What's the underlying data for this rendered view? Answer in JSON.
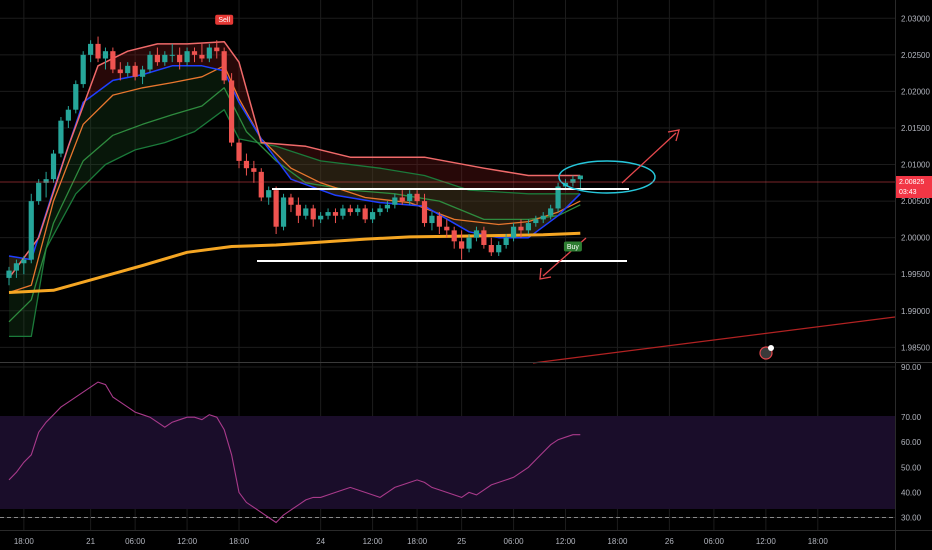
{
  "chart_data": [
    {
      "type": "candlestick",
      "panel": "price",
      "ylim": [
        1.983,
        2.0325
      ],
      "y_ticks": [
        "2.03000",
        "2.02500",
        "2.02000",
        "2.01500",
        "2.01000",
        "2.00500",
        "2.00000",
        "1.99500",
        "1.99000",
        "1.98500"
      ],
      "y_tick_values": [
        2.03,
        2.025,
        2.02,
        2.015,
        2.01,
        2.005,
        2.0,
        1.995,
        1.99,
        1.985
      ],
      "x_labels": [
        "18:00",
        "21",
        "06:00",
        "12:00",
        "18:00",
        "24",
        "12:00",
        "18:00",
        "25",
        "06:00",
        "12:00",
        "18:00",
        "26",
        "06:00",
        "12:00",
        "18:00"
      ],
      "x_label_bars": [
        2,
        11,
        17,
        24,
        31,
        42,
        49,
        55,
        61,
        68,
        75,
        82,
        89,
        95,
        102,
        109
      ],
      "current_price": "2.00825",
      "countdown": "03:43",
      "signals": [
        {
          "label": "Sell",
          "bar": 29,
          "price": 2.0298
        },
        {
          "label": "Buy",
          "bar": 76,
          "price": 1.9988
        }
      ],
      "candles": [
        [
          1.9945,
          1.996,
          1.9935,
          1.9955
        ],
        [
          1.9955,
          1.997,
          1.9945,
          1.9965
        ],
        [
          1.9965,
          1.9975,
          1.995,
          1.997
        ],
        [
          1.997,
          2.006,
          1.9965,
          2.005
        ],
        [
          2.005,
          2.008,
          2.0045,
          2.0075
        ],
        [
          2.0075,
          2.009,
          2.0055,
          2.008
        ],
        [
          2.008,
          2.012,
          2.0075,
          2.0115
        ],
        [
          2.0115,
          2.0165,
          2.011,
          2.016
        ],
        [
          2.016,
          2.018,
          2.015,
          2.0175
        ],
        [
          2.0175,
          2.0215,
          2.017,
          2.021
        ],
        [
          2.021,
          2.0255,
          2.0205,
          2.025
        ],
        [
          2.025,
          2.027,
          2.024,
          2.0265
        ],
        [
          2.0265,
          2.0275,
          2.024,
          2.0245
        ],
        [
          2.0245,
          2.026,
          2.023,
          2.0255
        ],
        [
          2.0255,
          2.026,
          2.0225,
          2.023
        ],
        [
          2.023,
          2.024,
          2.0215,
          2.0225
        ],
        [
          2.0225,
          2.024,
          2.022,
          2.0235
        ],
        [
          2.0235,
          2.024,
          2.0215,
          2.022
        ],
        [
          2.022,
          2.0235,
          2.021,
          2.023
        ],
        [
          2.023,
          2.0255,
          2.0225,
          2.025
        ],
        [
          2.025,
          2.026,
          2.0235,
          2.024
        ],
        [
          2.024,
          2.0255,
          2.0235,
          2.025
        ],
        [
          2.025,
          2.0265,
          2.024,
          2.025
        ],
        [
          2.025,
          2.026,
          2.023,
          2.024
        ],
        [
          2.024,
          2.026,
          2.0235,
          2.0255
        ],
        [
          2.0255,
          2.026,
          2.024,
          2.025
        ],
        [
          2.025,
          2.0265,
          2.024,
          2.0245
        ],
        [
          2.0245,
          2.0265,
          2.024,
          2.026
        ],
        [
          2.026,
          2.027,
          2.0245,
          2.0255
        ],
        [
          2.0255,
          2.026,
          2.021,
          2.0215
        ],
        [
          2.0215,
          2.0225,
          2.0125,
          2.013
        ],
        [
          2.013,
          2.0135,
          2.0095,
          2.0105
        ],
        [
          2.0105,
          2.0115,
          2.0085,
          2.0095
        ],
        [
          2.0095,
          2.0105,
          2.0075,
          2.009
        ],
        [
          2.009,
          2.0095,
          2.005,
          2.0055
        ],
        [
          2.0055,
          2.007,
          2.0045,
          2.0065
        ],
        [
          2.0065,
          2.007,
          2.0005,
          2.0015
        ],
        [
          2.0015,
          2.006,
          2.001,
          2.0055
        ],
        [
          2.0055,
          2.006,
          2.0035,
          2.0045
        ],
        [
          2.0045,
          2.0055,
          2.002,
          2.003
        ],
        [
          2.003,
          2.0045,
          2.0025,
          2.004
        ],
        [
          2.004,
          2.0045,
          2.0015,
          2.0025
        ],
        [
          2.0025,
          2.0035,
          2.002,
          2.003
        ],
        [
          2.003,
          2.004,
          2.0025,
          2.0035
        ],
        [
          2.0035,
          2.004,
          2.002,
          2.003
        ],
        [
          2.003,
          2.0045,
          2.0025,
          2.004
        ],
        [
          2.004,
          2.0045,
          2.003,
          2.0035
        ],
        [
          2.0035,
          2.0045,
          2.003,
          2.004
        ],
        [
          2.004,
          2.0045,
          2.002,
          2.0025
        ],
        [
          2.0025,
          2.004,
          2.002,
          2.0035
        ],
        [
          2.0035,
          2.0045,
          2.003,
          2.004
        ],
        [
          2.004,
          2.005,
          2.0035,
          2.0045
        ],
        [
          2.0045,
          2.006,
          2.004,
          2.0055
        ],
        [
          2.0055,
          2.0065,
          2.0045,
          2.005
        ],
        [
          2.005,
          2.0065,
          2.0045,
          2.006
        ],
        [
          2.006,
          2.0065,
          2.0045,
          2.005
        ],
        [
          2.005,
          2.006,
          2.0015,
          2.002
        ],
        [
          2.002,
          2.0035,
          2.001,
          2.003
        ],
        [
          2.003,
          2.0035,
          2.0005,
          2.0015
        ],
        [
          2.0015,
          2.0025,
          2.0,
          2.001
        ],
        [
          2.001,
          2.0015,
          1.9985,
          1.9995
        ],
        [
          1.9995,
          2.001,
          1.997,
          1.9985
        ],
        [
          1.9985,
          2.0005,
          1.998,
          2.0
        ],
        [
          2.0,
          2.0015,
          1.9995,
          2.001
        ],
        [
          2.001,
          2.0015,
          1.9985,
          1.999
        ],
        [
          1.999,
          2.0,
          1.9975,
          1.998
        ],
        [
          1.998,
          1.9995,
          1.9975,
          1.999
        ],
        [
          1.999,
          2.0005,
          1.9985,
          2.0
        ],
        [
          2.0,
          2.002,
          1.9995,
          2.0015
        ],
        [
          2.0015,
          2.0025,
          2.0,
          2.001
        ],
        [
          2.001,
          2.0025,
          2.0005,
          2.002
        ],
        [
          2.002,
          2.003,
          2.0015,
          2.0025
        ],
        [
          2.0025,
          2.0035,
          2.002,
          2.003
        ],
        [
          2.003,
          2.0045,
          2.0025,
          2.004
        ],
        [
          2.004,
          2.0075,
          2.0035,
          2.007
        ],
        [
          2.007,
          2.008,
          2.0065,
          2.0075
        ],
        [
          2.0075,
          2.0085,
          2.007,
          2.008
        ],
        [
          2.008,
          2.0085,
          2.0065,
          2.0085
        ]
      ],
      "series": [
        {
          "points": [
            [
              0,
              1.9865
            ],
            [
              3,
              1.9865
            ],
            [
              5,
              1.9985
            ],
            [
              9,
              2.006
            ],
            [
              13,
              2.01
            ],
            [
              17,
              2.012
            ],
            [
              21,
              2.013
            ],
            [
              25,
              2.0145
            ],
            [
              29,
              2.0175
            ],
            [
              31,
              2.0135
            ],
            [
              36,
              2.0125
            ],
            [
              42,
              2.0105
            ],
            [
              50,
              2.0095
            ],
            [
              56,
              2.0085
            ],
            [
              62,
              2.0065
            ],
            [
              70,
              2.006
            ],
            [
              77,
              2.006
            ]
          ]
        },
        {
          "points": [
            [
              0,
              1.9885
            ],
            [
              3,
              1.9915
            ],
            [
              6,
              2.002
            ],
            [
              10,
              2.0105
            ],
            [
              14,
              2.014
            ],
            [
              18,
              2.0155
            ],
            [
              22,
              2.0168
            ],
            [
              26,
              2.018
            ],
            [
              29,
              2.0205
            ],
            [
              32,
              2.0145
            ],
            [
              36,
              2.0105
            ],
            [
              40,
              2.0075
            ],
            [
              46,
              2.0065
            ],
            [
              52,
              2.006
            ],
            [
              58,
              2.005
            ],
            [
              64,
              2.0025
            ],
            [
              70,
              2.0025
            ],
            [
              74,
              2.003
            ],
            [
              77,
              2.0045
            ]
          ]
        },
        {
          "points": [
            [
              0,
              1.9925
            ],
            [
              3,
              1.9935
            ],
            [
              6,
              2.005
            ],
            [
              10,
              2.0155
            ],
            [
              14,
              2.0195
            ],
            [
              18,
              2.0205
            ],
            [
              22,
              2.0212
            ],
            [
              26,
              2.022
            ],
            [
              29,
              2.0235
            ],
            [
              31,
              2.019
            ],
            [
              34,
              2.0135
            ],
            [
              38,
              2.0095
            ],
            [
              42,
              2.0075
            ],
            [
              48,
              2.0055
            ],
            [
              54,
              2.0048
            ],
            [
              60,
              2.0025
            ],
            [
              66,
              2.0018
            ],
            [
              70,
              2.0022
            ],
            [
              74,
              2.0035
            ],
            [
              77,
              2.005
            ]
          ]
        },
        {
          "points": [
            [
              0,
              1.9975
            ],
            [
              3,
              1.997
            ],
            [
              6,
              2.0065
            ],
            [
              10,
              2.0185
            ],
            [
              14,
              2.0215
            ],
            [
              18,
              2.0223
            ],
            [
              22,
              2.0235
            ],
            [
              26,
              2.0235
            ],
            [
              29,
              2.0228
            ],
            [
              31,
              2.0185
            ],
            [
              34,
              2.0135
            ],
            [
              38,
              2.008
            ],
            [
              44,
              2.0058
            ],
            [
              50,
              2.0048
            ],
            [
              56,
              2.0043
            ],
            [
              62,
              2.0008
            ],
            [
              66,
              2.0
            ],
            [
              70,
              2.0
            ],
            [
              74,
              2.003
            ],
            [
              77,
              2.006
            ]
          ]
        },
        {
          "points": [
            [
              0,
              1.9925
            ],
            [
              6,
              1.9928
            ],
            [
              12,
              1.9945
            ],
            [
              18,
              1.9962
            ],
            [
              24,
              1.998
            ],
            [
              30,
              1.9988
            ],
            [
              36,
              1.999
            ],
            [
              42,
              1.9994
            ],
            [
              48,
              1.9998
            ],
            [
              54,
              2.0001
            ],
            [
              60,
              2.0002
            ],
            [
              66,
              2.0003
            ],
            [
              72,
              2.0004
            ],
            [
              77,
              2.0006
            ]
          ]
        },
        {
          "points": [
            [
              0,
              1.9945
            ],
            [
              4,
              2.0
            ],
            [
              8,
              2.0125
            ],
            [
              12,
              2.0235
            ],
            [
              16,
              2.0255
            ],
            [
              20,
              2.0265
            ],
            [
              24,
              2.0265
            ],
            [
              29,
              2.0268
            ],
            [
              31,
              2.024
            ],
            [
              34,
              2.013
            ],
            [
              40,
              2.0125
            ],
            [
              46,
              2.011
            ],
            [
              56,
              2.011
            ],
            [
              64,
              2.0095
            ],
            [
              70,
              2.0085
            ],
            [
              77,
              2.0085
            ]
          ]
        }
      ]
    },
    {
      "type": "line",
      "panel": "oscillator",
      "ylim": [
        25,
        92
      ],
      "y_ticks": [
        "90.00",
        "70.00",
        "60.00",
        "50.00",
        "40.00",
        "30.00"
      ],
      "y_tick_values": [
        90,
        70,
        60,
        50,
        40,
        30
      ],
      "levels": [
        70,
        30
      ],
      "values": [
        45,
        48,
        52,
        55,
        64,
        68,
        71,
        74,
        76,
        78,
        80,
        82,
        84,
        83,
        78,
        76,
        74,
        72,
        71,
        70,
        68,
        66,
        68,
        69,
        70,
        70,
        69,
        71,
        70,
        65,
        55,
        40,
        36,
        34,
        32,
        30,
        28,
        31,
        33,
        35,
        37,
        38,
        38,
        39,
        40,
        41,
        42,
        41,
        40,
        39,
        38,
        40,
        42,
        43,
        44,
        45,
        44,
        42,
        41,
        40,
        39,
        38,
        40,
        39,
        41,
        43,
        44,
        45,
        46,
        48,
        50,
        53,
        56,
        59,
        61,
        62,
        63,
        63
      ]
    }
  ]
}
